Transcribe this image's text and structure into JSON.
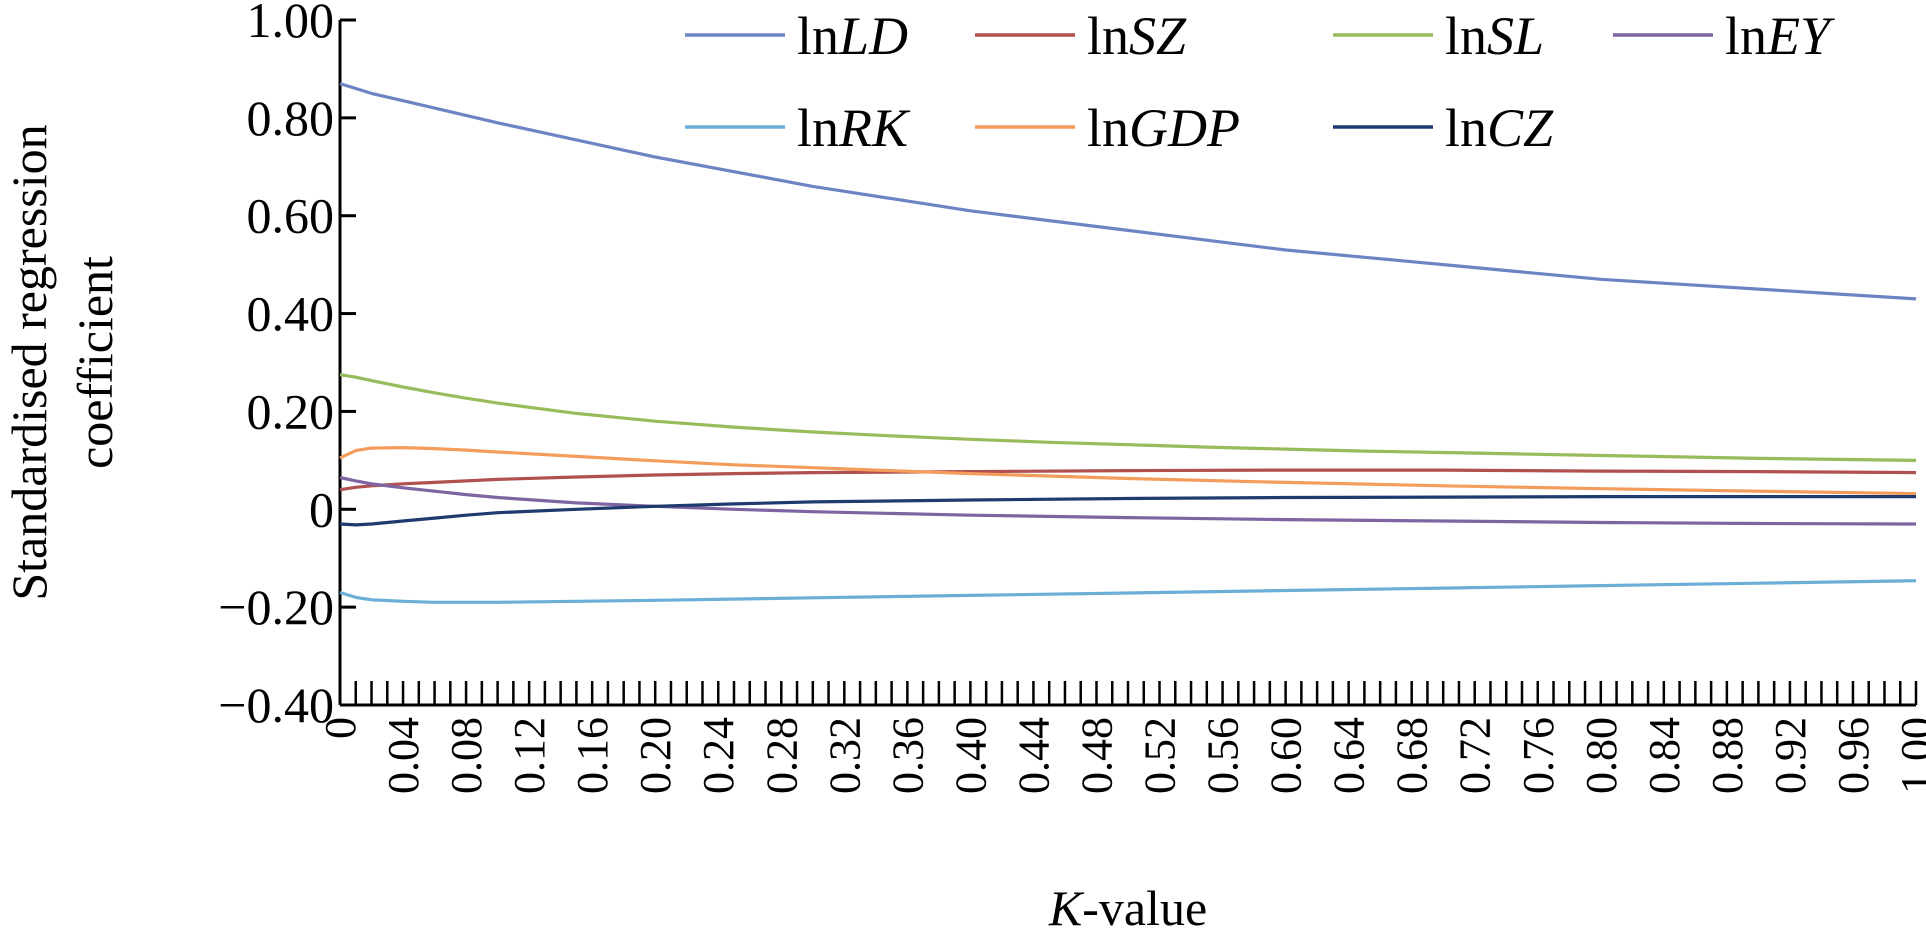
{
  "chart_data": {
    "type": "line",
    "title": "",
    "xlabel_italic": "K",
    "xlabel_rest": "-value",
    "ylabel_lines": [
      "Standardised regression",
      "coefficient"
    ],
    "ylim": [
      -0.4,
      1.0
    ],
    "xlim": [
      0,
      1.0
    ],
    "y_ticks": [
      {
        "value": 1.0,
        "label": "1.00"
      },
      {
        "value": 0.8,
        "label": "0.80"
      },
      {
        "value": 0.6,
        "label": "0.60"
      },
      {
        "value": 0.4,
        "label": "0.40"
      },
      {
        "value": 0.2,
        "label": "0.20"
      },
      {
        "value": 0.0,
        "label": "0"
      },
      {
        "value": -0.2,
        "label": "−0.20"
      },
      {
        "value": -0.4,
        "label": "−0.40"
      }
    ],
    "x_tick_labels": [
      "0",
      "0.04",
      "0.08",
      "0.12",
      "0.16",
      "0.20",
      "0.24",
      "0.28",
      "0.32",
      "0.36",
      "0.40",
      "0.44",
      "0.48",
      "0.52",
      "0.56",
      "0.60",
      "0.64",
      "0.68",
      "0.72",
      "0.76",
      "0.80",
      "0.84",
      "0.88",
      "0.92",
      "0.96",
      "1.00"
    ],
    "x_minor_step": 0.01,
    "legend_position": "top, inside plot, two rows",
    "series": [
      {
        "name_prefix": "ln",
        "name_italic": "LD",
        "color": "#6d84c4",
        "x": [
          0,
          0.01,
          0.02,
          0.04,
          0.06,
          0.08,
          0.1,
          0.15,
          0.2,
          0.25,
          0.3,
          0.35,
          0.4,
          0.45,
          0.5,
          0.55,
          0.6,
          0.65,
          0.7,
          0.75,
          0.8,
          0.85,
          0.9,
          0.95,
          1.0
        ],
        "y": [
          0.87,
          0.86,
          0.85,
          0.835,
          0.82,
          0.805,
          0.79,
          0.755,
          0.72,
          0.69,
          0.66,
          0.635,
          0.61,
          0.59,
          0.57,
          0.55,
          0.53,
          0.515,
          0.5,
          0.485,
          0.47,
          0.46,
          0.45,
          0.44,
          0.43
        ]
      },
      {
        "name_prefix": "ln",
        "name_italic": "SZ",
        "color": "#b0514f",
        "x": [
          0,
          0.01,
          0.02,
          0.04,
          0.06,
          0.08,
          0.1,
          0.15,
          0.2,
          0.25,
          0.3,
          0.4,
          0.5,
          0.6,
          0.7,
          0.8,
          0.9,
          1.0
        ],
        "y": [
          0.04,
          0.045,
          0.048,
          0.052,
          0.055,
          0.058,
          0.061,
          0.066,
          0.07,
          0.073,
          0.075,
          0.077,
          0.079,
          0.08,
          0.08,
          0.078,
          0.077,
          0.075
        ]
      },
      {
        "name_prefix": "ln",
        "name_italic": "SL",
        "color": "#98bb5c",
        "x": [
          0,
          0.01,
          0.02,
          0.04,
          0.06,
          0.08,
          0.1,
          0.15,
          0.2,
          0.25,
          0.3,
          0.35,
          0.4,
          0.45,
          0.5,
          0.55,
          0.6,
          0.65,
          0.7,
          0.75,
          0.8,
          0.85,
          0.9,
          0.95,
          1.0
        ],
        "y": [
          0.275,
          0.27,
          0.263,
          0.25,
          0.238,
          0.227,
          0.217,
          0.196,
          0.18,
          0.168,
          0.158,
          0.15,
          0.143,
          0.137,
          0.132,
          0.127,
          0.123,
          0.119,
          0.116,
          0.113,
          0.11,
          0.107,
          0.104,
          0.102,
          0.1
        ]
      },
      {
        "name_prefix": "ln",
        "name_italic": "EY",
        "color": "#7f64a2",
        "x": [
          0,
          0.01,
          0.02,
          0.04,
          0.06,
          0.08,
          0.1,
          0.15,
          0.2,
          0.25,
          0.3,
          0.4,
          0.5,
          0.6,
          0.7,
          0.8,
          0.9,
          1.0
        ],
        "y": [
          0.065,
          0.058,
          0.052,
          0.044,
          0.037,
          0.03,
          0.024,
          0.013,
          0.006,
          0.0,
          -0.005,
          -0.012,
          -0.017,
          -0.021,
          -0.024,
          -0.027,
          -0.029,
          -0.03
        ]
      },
      {
        "name_prefix": "ln",
        "name_italic": "RK",
        "color": "#6baed6",
        "x": [
          0,
          0.01,
          0.02,
          0.04,
          0.06,
          0.08,
          0.1,
          0.15,
          0.2,
          0.3,
          0.4,
          0.5,
          0.6,
          0.7,
          0.8,
          0.9,
          1.0
        ],
        "y": [
          -0.17,
          -0.18,
          -0.185,
          -0.188,
          -0.19,
          -0.19,
          -0.19,
          -0.188,
          -0.186,
          -0.181,
          -0.176,
          -0.171,
          -0.166,
          -0.161,
          -0.156,
          -0.151,
          -0.146
        ]
      },
      {
        "name_prefix": "ln",
        "name_italic": "GDP",
        "color": "#f39c5b",
        "x": [
          0,
          0.01,
          0.02,
          0.04,
          0.06,
          0.08,
          0.1,
          0.15,
          0.2,
          0.25,
          0.3,
          0.4,
          0.5,
          0.6,
          0.7,
          0.8,
          0.9,
          1.0
        ],
        "y": [
          0.105,
          0.12,
          0.125,
          0.126,
          0.124,
          0.121,
          0.117,
          0.108,
          0.099,
          0.091,
          0.085,
          0.073,
          0.063,
          0.055,
          0.048,
          0.042,
          0.037,
          0.032
        ]
      },
      {
        "name_prefix": "ln",
        "name_italic": "CZ",
        "color": "#1f3b6e",
        "x": [
          0,
          0.01,
          0.02,
          0.04,
          0.06,
          0.08,
          0.1,
          0.15,
          0.2,
          0.25,
          0.3,
          0.4,
          0.5,
          0.6,
          0.7,
          0.8,
          0.9,
          1.0
        ],
        "y": [
          -0.03,
          -0.032,
          -0.03,
          -0.024,
          -0.018,
          -0.012,
          -0.007,
          0.0,
          0.006,
          0.011,
          0.015,
          0.019,
          0.022,
          0.024,
          0.025,
          0.026,
          0.026,
          0.026
        ]
      }
    ]
  }
}
